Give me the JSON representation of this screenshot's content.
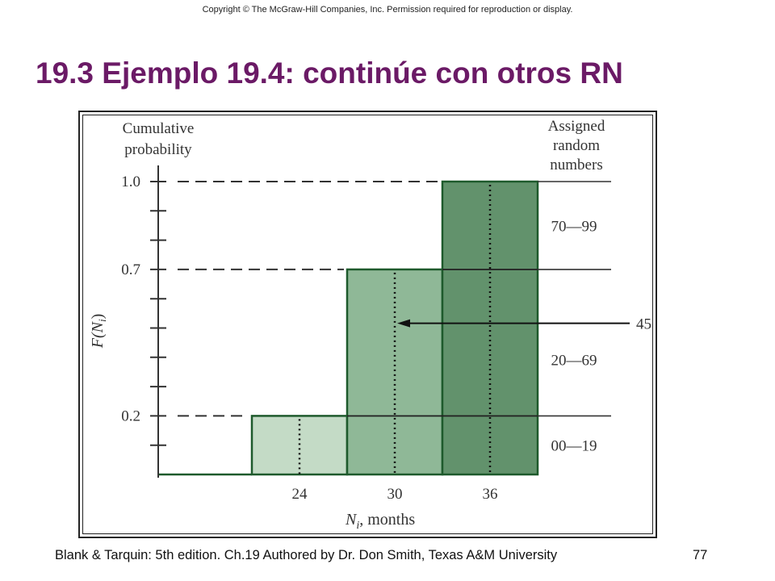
{
  "header": {
    "copyright": "Copyright © The McGraw-Hill  Companies, Inc. Permission required for reproduction or display."
  },
  "slide": {
    "title": "19.3 Ejemplo 19.4: continúe con otros RN",
    "footer": "Blank & Tarquin: 5th edition. Ch.19 Authored by Dr. Don Smith, Texas A&M University",
    "page_number": "77"
  },
  "chart_data": {
    "type": "bar",
    "title": "",
    "xlabel_main": "N",
    "xlabel_sub": "i",
    "xlabel_rest": ", months",
    "ylabel_title_line1": "Cumulative",
    "ylabel_title_line2": "probability",
    "ylabel_axis": "F(N",
    "ylabel_axis_sub": "i",
    "ylabel_axis_close": ")",
    "right_header_lines": [
      "Assigned",
      "random",
      "numbers"
    ],
    "categories": [
      "24",
      "30",
      "36"
    ],
    "values": [
      0.2,
      0.7,
      1.0
    ],
    "bar_colors": [
      "#c4dbc6",
      "#8fb897",
      "#62926c"
    ],
    "bar_edge_color": "#1e5a2c",
    "y_tick_labels": [
      "1.0",
      "0.7",
      "0.2"
    ],
    "y_tick_values": [
      1.0,
      0.7,
      0.2
    ],
    "ylim": [
      0,
      1.0
    ],
    "random_number_ranges": [
      "70—99",
      "20—69",
      "00—19"
    ],
    "range_bounds": [
      [
        0.7,
        1.0
      ],
      [
        0.2,
        0.7
      ],
      [
        0.0,
        0.2
      ]
    ],
    "example_random_number": "45",
    "example_level": 0.45,
    "example_category_index": 1
  }
}
